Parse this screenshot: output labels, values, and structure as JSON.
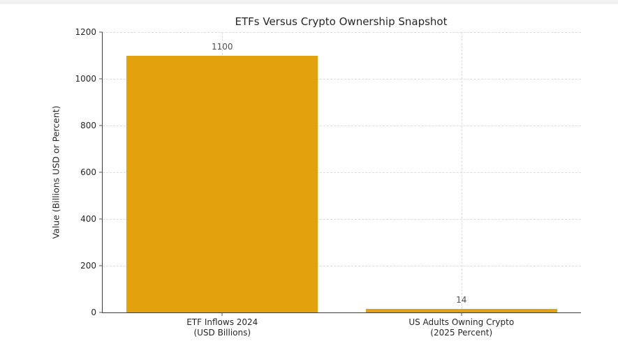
{
  "chart_data": {
    "type": "bar",
    "title": "ETFs Versus Crypto Ownership Snapshot",
    "ylabel": "Value (Billions USD or Percent)",
    "xlabel": "",
    "categories": [
      [
        "ETF Inflows 2024",
        "(USD Billions)"
      ],
      [
        "US Adults Owning Crypto",
        "(2025 Percent)"
      ]
    ],
    "values": [
      1100,
      14
    ],
    "bar_value_labels": [
      "1100",
      "14"
    ],
    "ylim": [
      0,
      1200
    ],
    "yticks": [
      0,
      200,
      400,
      600,
      800,
      1000,
      1200
    ],
    "grid": "both-dashed",
    "legend_position": "none",
    "colors": {
      "bar": "#E2A10D",
      "grid": "#DCDCDC",
      "spine": "#3A3A3A",
      "tick_label": "#262626",
      "value_label": "#4F4F4F",
      "title": "#262626"
    }
  }
}
